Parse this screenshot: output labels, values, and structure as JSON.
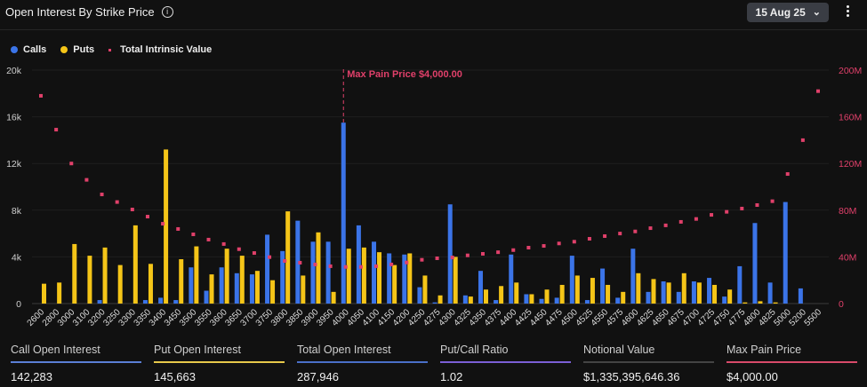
{
  "header": {
    "title": "Open Interest By Strike Price",
    "info_icon": "info-icon",
    "date_selector": "15 Aug 25",
    "menu_icon": "kebab-menu-icon"
  },
  "legend": [
    {
      "label": "Calls",
      "color": "#3b74e8"
    },
    {
      "label": "Puts",
      "color": "#f5c518"
    },
    {
      "label": "Total Intrinsic Value",
      "color": "#e0406a"
    }
  ],
  "chart_data": {
    "type": "bar",
    "categories": [
      "2600",
      "2800",
      "3000",
      "3100",
      "3200",
      "3250",
      "3300",
      "3350",
      "3400",
      "3450",
      "3500",
      "3550",
      "3600",
      "3650",
      "3700",
      "3750",
      "3800",
      "3850",
      "3900",
      "3950",
      "4000",
      "4050",
      "4100",
      "4150",
      "4200",
      "4250",
      "4275",
      "4300",
      "4325",
      "4350",
      "4375",
      "4400",
      "4425",
      "4450",
      "4475",
      "4500",
      "4525",
      "4550",
      "4575",
      "4600",
      "4625",
      "4650",
      "4675",
      "4700",
      "4725",
      "4750",
      "4775",
      "4800",
      "4825",
      "5000",
      "5200",
      "5500"
    ],
    "series": [
      {
        "name": "Calls",
        "type": "bar",
        "axis": "left",
        "color": "#3b74e8",
        "values": [
          0,
          0,
          0,
          0,
          300,
          0,
          0,
          300,
          500,
          300,
          3100,
          1100,
          3100,
          2600,
          2500,
          5900,
          4500,
          7100,
          5300,
          5300,
          15500,
          6700,
          5300,
          4300,
          4200,
          1400,
          100,
          8500,
          700,
          2800,
          300,
          4200,
          800,
          400,
          500,
          4100,
          300,
          3000,
          500,
          4700,
          1000,
          1900,
          1000,
          1900,
          2200,
          600,
          3200,
          6900,
          1800,
          8700,
          1300,
          0
        ]
      },
      {
        "name": "Puts",
        "type": "bar",
        "axis": "left",
        "color": "#f5c518",
        "values": [
          1700,
          1800,
          5100,
          4100,
          4800,
          3300,
          6700,
          3400,
          13200,
          3800,
          4900,
          2500,
          4700,
          4100,
          2800,
          2000,
          7900,
          2400,
          6100,
          1000,
          4700,
          4800,
          4400,
          3300,
          4300,
          2400,
          700,
          4000,
          600,
          1200,
          1500,
          1800,
          800,
          1200,
          1600,
          2400,
          2200,
          1600,
          1000,
          2600,
          2100,
          1800,
          2600,
          1800,
          1600,
          1200,
          100,
          200,
          100,
          0,
          0,
          0
        ]
      },
      {
        "name": "Total Intrinsic Value",
        "type": "scatter",
        "axis": "right",
        "color": "#e0406a",
        "values": [
          178,
          149,
          120,
          106,
          93.5,
          87,
          80.6,
          74.5,
          68.4,
          63.9,
          59.3,
          54.8,
          51,
          46.6,
          43.3,
          39.8,
          36.5,
          35,
          33.5,
          32,
          31.4,
          31.4,
          32,
          33.5,
          35.2,
          37.5,
          38.8,
          39.5,
          41.3,
          42.6,
          44,
          45.8,
          47.9,
          49.4,
          51.5,
          53,
          55.5,
          57.8,
          60,
          61.8,
          64.6,
          67,
          70,
          72.5,
          76,
          78.6,
          81.4,
          84.4,
          87.7,
          111,
          140,
          182
        ],
        "unit": "M"
      }
    ],
    "y_left": {
      "ylim": [
        0,
        20000
      ],
      "ticks": [
        "0",
        "4k",
        "8k",
        "12k",
        "16k",
        "20k"
      ]
    },
    "y_right": {
      "ylim": [
        0,
        200
      ],
      "ticks": [
        "0",
        "40M",
        "80M",
        "120M",
        "160M",
        "200M"
      ],
      "color": "#e0406a"
    },
    "annotation": {
      "label": "Max Pain Price $4,000.00",
      "category": "4000",
      "color": "#e0406a"
    },
    "grid": true,
    "legend_position": "top-left"
  },
  "stats": [
    {
      "label": "Call Open Interest",
      "value": "142,283",
      "color": "#5b7fd6"
    },
    {
      "label": "Put Open Interest",
      "value": "145,663",
      "color": "#e6c84a"
    },
    {
      "label": "Total Open Interest",
      "value": "287,946",
      "color": "#4a6fc8"
    },
    {
      "label": "Put/Call Ratio",
      "value": "1.02",
      "color": "#7b5fd6"
    },
    {
      "label": "Notional Value",
      "value": "$1,335,395,646.36",
      "color": "#444444"
    },
    {
      "label": "Max Pain Price",
      "value": "$4,000.00",
      "color": "#d94a6a"
    }
  ]
}
